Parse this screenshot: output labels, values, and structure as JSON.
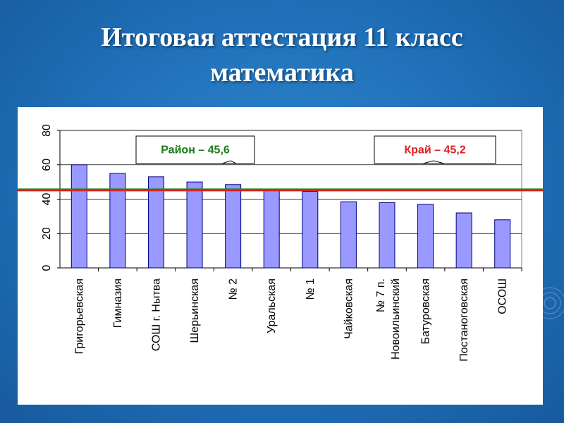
{
  "slide": {
    "title_line1": "Итоговая аттестация 11 класс",
    "title_line2": "математика"
  },
  "colors": {
    "bar_fill": "#9999ff",
    "bar_stroke": "#000080",
    "district_line": "#1f8a1f",
    "region_line": "#e02020",
    "district_text": "#1a7a1a",
    "region_text": "#e02020"
  },
  "chart_data": {
    "type": "bar",
    "categories": [
      "Григорьевская",
      "Гимназия",
      "СОШ г. Нытва",
      "Шерьинская",
      "№ 2",
      "Уральская",
      "№ 1",
      "Чайковская",
      "№ 7 п. Новоильинский",
      "Батуровская",
      "Постаноговская",
      "ОСОШ"
    ],
    "values": [
      60,
      55,
      53,
      50,
      48.5,
      45.5,
      44.5,
      38.5,
      38,
      37,
      32,
      28
    ],
    "ylim": [
      0,
      80
    ],
    "yticks": [
      "0",
      "20",
      "40",
      "60",
      "80"
    ],
    "grid": true,
    "reference_lines": [
      {
        "label": "Район – 45,6",
        "value": 45.6,
        "color": "#1f8a1f"
      },
      {
        "label": "Край – 45,2",
        "value": 45.2,
        "color": "#e02020"
      }
    ]
  }
}
